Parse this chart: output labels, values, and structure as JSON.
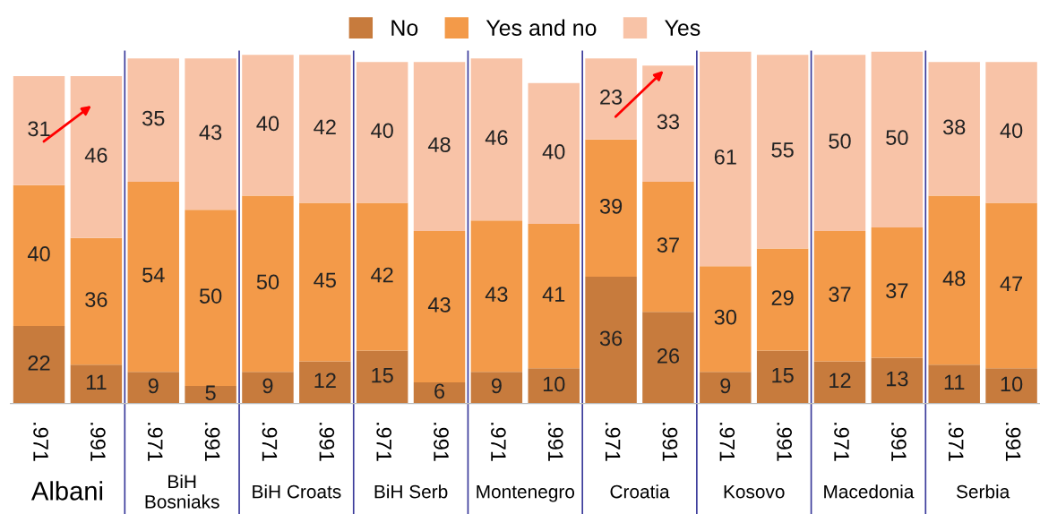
{
  "chart_data": {
    "type": "bar",
    "stacked": true,
    "data_labels": true,
    "legend": "top",
    "grid": false,
    "tick_labels": "x",
    "categories": [
      ".971",
      ".991",
      ".971",
      ".991",
      ".971",
      ".991",
      ".971",
      ".991",
      ".971",
      ".991",
      ".971",
      ".991",
      ".971",
      ".991",
      ".971",
      ".991",
      ".971",
      ".991"
    ],
    "series": [
      {
        "name": "No",
        "color": "#c77b3d",
        "values": [
          22,
          11,
          9,
          5,
          9,
          12,
          15,
          6,
          9,
          10,
          36,
          26,
          9,
          15,
          12,
          13,
          11,
          10
        ]
      },
      {
        "name": "Yes and no",
        "color": "#f39a49",
        "values": [
          40,
          36,
          54,
          50,
          50,
          45,
          42,
          43,
          43,
          41,
          39,
          37,
          30,
          29,
          37,
          37,
          48,
          47
        ]
      },
      {
        "name": "Yes",
        "color": "#f8c3a7",
        "values": [
          31,
          46,
          35,
          43,
          40,
          42,
          40,
          48,
          46,
          40,
          23,
          33,
          61,
          55,
          50,
          50,
          38,
          40
        ]
      }
    ],
    "annotations": [
      "Albani",
      "BiH\nBosniaks",
      "BiH Croats",
      "BiH Serb",
      "Montenegro",
      "Croatia",
      "Kosovo",
      "Macedonia",
      "Serbia"
    ]
  }
}
